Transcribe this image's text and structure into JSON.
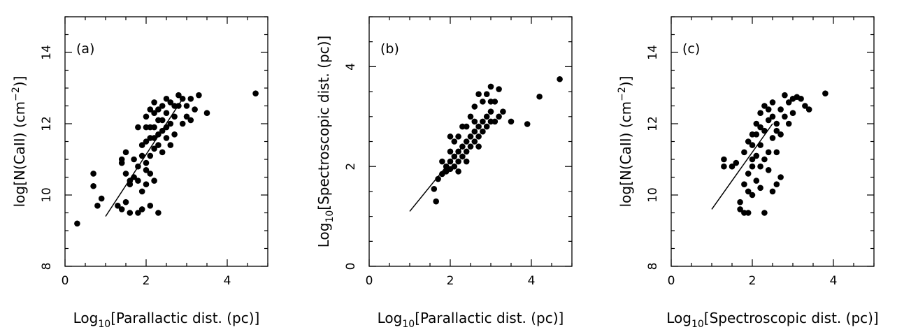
{
  "chart_data": [
    {
      "type": "scatter",
      "panel_label": "(a)",
      "xlim": [
        0,
        5
      ],
      "ylim": [
        8,
        15
      ],
      "xticks": [
        0,
        2,
        4
      ],
      "yticks": [
        8,
        10,
        12,
        14
      ],
      "xlabel": {
        "prefix": "Log",
        "sub": "10",
        "rest": "[Parallactic dist. (pc)]"
      },
      "ylabel": {
        "prefix": "log[N(CaII) (cm",
        "sup": "−2",
        "rest": ")]"
      },
      "fit_line": [
        [
          1.0,
          9.4
        ],
        [
          2.9,
          12.7
        ]
      ],
      "points": [
        [
          0.3,
          9.2
        ],
        [
          0.7,
          10.6
        ],
        [
          0.7,
          10.25
        ],
        [
          0.8,
          9.7
        ],
        [
          0.9,
          9.9
        ],
        [
          1.3,
          9.7
        ],
        [
          1.4,
          9.6
        ],
        [
          1.5,
          9.8
        ],
        [
          1.6,
          9.5
        ],
        [
          1.6,
          10.4
        ],
        [
          1.8,
          9.5
        ],
        [
          1.9,
          9.6
        ],
        [
          2.1,
          9.7
        ],
        [
          2.3,
          9.5
        ],
        [
          1.4,
          11.0
        ],
        [
          1.4,
          10.9
        ],
        [
          1.5,
          11.2
        ],
        [
          1.5,
          10.6
        ],
        [
          1.6,
          10.3
        ],
        [
          1.7,
          10.5
        ],
        [
          1.7,
          11.0
        ],
        [
          1.8,
          10.8
        ],
        [
          1.8,
          10.4
        ],
        [
          1.9,
          10.1
        ],
        [
          1.9,
          11.4
        ],
        [
          2.0,
          10.9
        ],
        [
          2.0,
          10.3
        ],
        [
          2.1,
          10.6
        ],
        [
          2.1,
          11.1
        ],
        [
          2.2,
          10.4
        ],
        [
          2.2,
          11.6
        ],
        [
          2.0,
          11.9
        ],
        [
          2.0,
          12.2
        ],
        [
          2.1,
          12.4
        ],
        [
          2.2,
          12.6
        ],
        [
          2.3,
          12.1
        ],
        [
          2.3,
          11.4
        ],
        [
          2.4,
          11.8
        ],
        [
          2.4,
          12.5
        ],
        [
          2.5,
          12.3
        ],
        [
          2.5,
          11.6
        ],
        [
          2.6,
          12.0
        ],
        [
          2.6,
          12.6
        ],
        [
          2.7,
          12.2
        ],
        [
          2.8,
          12.5
        ],
        [
          2.8,
          12.8
        ],
        [
          2.9,
          12.7
        ],
        [
          3.0,
          12.5
        ],
        [
          3.1,
          12.7
        ],
        [
          3.2,
          12.4
        ],
        [
          3.3,
          12.8
        ],
        [
          3.5,
          12.3
        ],
        [
          3.1,
          12.1
        ],
        [
          4.7,
          12.85
        ],
        [
          2.1,
          11.6
        ],
        [
          2.2,
          11.3
        ],
        [
          2.2,
          11.9
        ],
        [
          2.3,
          11.7
        ],
        [
          2.4,
          11.2
        ],
        [
          2.5,
          11.9
        ],
        [
          2.6,
          11.4
        ],
        [
          2.7,
          11.7
        ],
        [
          2.9,
          12.0
        ],
        [
          3.0,
          12.2
        ],
        [
          1.9,
          11.1
        ],
        [
          2.0,
          11.5
        ],
        [
          2.1,
          11.9
        ],
        [
          2.3,
          12.4
        ],
        [
          2.4,
          12.1
        ],
        [
          2.5,
          12.7
        ],
        [
          2.7,
          12.5
        ],
        [
          2.2,
          12.3
        ],
        [
          1.8,
          11.9
        ],
        [
          2.0,
          10.7
        ]
      ]
    },
    {
      "type": "scatter",
      "panel_label": "(b)",
      "xlim": [
        0,
        5
      ],
      "ylim": [
        0,
        5
      ],
      "xticks": [
        0,
        2,
        4
      ],
      "yticks": [
        0,
        2,
        4
      ],
      "xlabel": {
        "prefix": "Log",
        "sub": "10",
        "rest": "[Parallactic dist. (pc)]"
      },
      "ylabel": {
        "prefix": "Log",
        "sub": "10",
        "rest": "[Spectroscopic dist. (pc)]"
      },
      "fit_line": [
        [
          1.0,
          1.1
        ],
        [
          2.3,
          2.4
        ]
      ],
      "points": [
        [
          1.6,
          1.55
        ],
        [
          1.65,
          1.3
        ],
        [
          1.7,
          1.75
        ],
        [
          1.8,
          1.85
        ],
        [
          1.9,
          1.9
        ],
        [
          1.9,
          2.0
        ],
        [
          2.0,
          1.95
        ],
        [
          2.0,
          2.1
        ],
        [
          2.1,
          2.2
        ],
        [
          2.1,
          2.0
        ],
        [
          2.2,
          2.3
        ],
        [
          2.2,
          2.1
        ],
        [
          2.3,
          2.4
        ],
        [
          2.3,
          2.2
        ],
        [
          2.4,
          2.5
        ],
        [
          2.4,
          2.3
        ],
        [
          2.5,
          2.6
        ],
        [
          2.5,
          2.4
        ],
        [
          2.6,
          2.7
        ],
        [
          2.6,
          2.5
        ],
        [
          2.7,
          2.8
        ],
        [
          2.7,
          2.6
        ],
        [
          2.8,
          2.9
        ],
        [
          2.8,
          2.7
        ],
        [
          2.9,
          3.0
        ],
        [
          2.9,
          2.8
        ],
        [
          3.0,
          3.1
        ],
        [
          3.0,
          2.9
        ],
        [
          3.1,
          3.3
        ],
        [
          3.1,
          2.9
        ],
        [
          3.2,
          3.0
        ],
        [
          2.7,
          3.45
        ],
        [
          2.9,
          3.45
        ],
        [
          3.0,
          3.6
        ],
        [
          3.2,
          3.55
        ],
        [
          3.5,
          2.9
        ],
        [
          3.9,
          2.85
        ],
        [
          4.2,
          3.4
        ],
        [
          4.7,
          3.75
        ],
        [
          2.3,
          2.8
        ],
        [
          2.1,
          2.5
        ],
        [
          2.5,
          3.0
        ],
        [
          2.6,
          3.2
        ],
        [
          2.8,
          3.3
        ],
        [
          2.0,
          2.3
        ],
        [
          2.2,
          2.6
        ],
        [
          2.4,
          2.8
        ],
        [
          2.6,
          2.9
        ],
        [
          3.0,
          3.3
        ],
        [
          3.3,
          3.1
        ],
        [
          2.2,
          1.9
        ],
        [
          2.4,
          2.1
        ],
        [
          2.7,
          2.4
        ],
        [
          1.8,
          2.1
        ],
        [
          2.0,
          2.6
        ]
      ]
    },
    {
      "type": "scatter",
      "panel_label": "(c)",
      "xlim": [
        0,
        5
      ],
      "ylim": [
        8,
        15
      ],
      "xticks": [
        0,
        2,
        4
      ],
      "yticks": [
        8,
        10,
        12,
        14
      ],
      "xlabel": {
        "prefix": "Log",
        "sub": "10",
        "rest": "[Spectroscopic dist. (pc)]"
      },
      "ylabel": {
        "prefix": "log[N(CaII) (cm",
        "sup": "−2",
        "rest": ")]"
      },
      "fit_line": [
        [
          1.0,
          9.6
        ],
        [
          2.5,
          12.0
        ]
      ],
      "points": [
        [
          1.3,
          11.0
        ],
        [
          1.3,
          10.8
        ],
        [
          1.5,
          10.8
        ],
        [
          1.6,
          10.9
        ],
        [
          1.7,
          9.8
        ],
        [
          1.7,
          9.6
        ],
        [
          1.8,
          9.5
        ],
        [
          1.9,
          9.5
        ],
        [
          1.8,
          10.3
        ],
        [
          1.9,
          10.1
        ],
        [
          2.0,
          10.0
        ],
        [
          2.1,
          10.4
        ],
        [
          2.2,
          10.2
        ],
        [
          2.3,
          9.5
        ],
        [
          2.5,
          10.1
        ],
        [
          2.6,
          10.3
        ],
        [
          2.7,
          10.5
        ],
        [
          1.8,
          11.2
        ],
        [
          1.9,
          11.5
        ],
        [
          2.0,
          10.8
        ],
        [
          2.0,
          11.7
        ],
        [
          2.1,
          11.1
        ],
        [
          2.1,
          12.0
        ],
        [
          2.2,
          11.4
        ],
        [
          2.2,
          12.3
        ],
        [
          2.3,
          11.8
        ],
        [
          2.3,
          12.5
        ],
        [
          2.4,
          11.2
        ],
        [
          2.4,
          12.1
        ],
        [
          2.5,
          11.6
        ],
        [
          2.5,
          12.6
        ],
        [
          2.6,
          12.0
        ],
        [
          2.7,
          12.4
        ],
        [
          2.8,
          12.2
        ],
        [
          2.8,
          12.8
        ],
        [
          2.9,
          12.6
        ],
        [
          3.0,
          12.7
        ],
        [
          3.1,
          12.75
        ],
        [
          3.2,
          12.7
        ],
        [
          3.3,
          12.5
        ],
        [
          3.4,
          12.4
        ],
        [
          3.8,
          12.85
        ],
        [
          2.2,
          10.8
        ],
        [
          2.3,
          11.0
        ],
        [
          2.4,
          10.7
        ],
        [
          2.6,
          11.2
        ],
        [
          2.7,
          11.7
        ],
        [
          2.9,
          12.0
        ],
        [
          3.0,
          12.3
        ],
        [
          2.0,
          11.4
        ],
        [
          2.1,
          11.7
        ],
        [
          2.2,
          11.9
        ],
        [
          2.4,
          12.4
        ],
        [
          2.5,
          12.2
        ],
        [
          2.6,
          11.8
        ],
        [
          1.9,
          10.6
        ],
        [
          2.0,
          11.0
        ]
      ]
    }
  ]
}
